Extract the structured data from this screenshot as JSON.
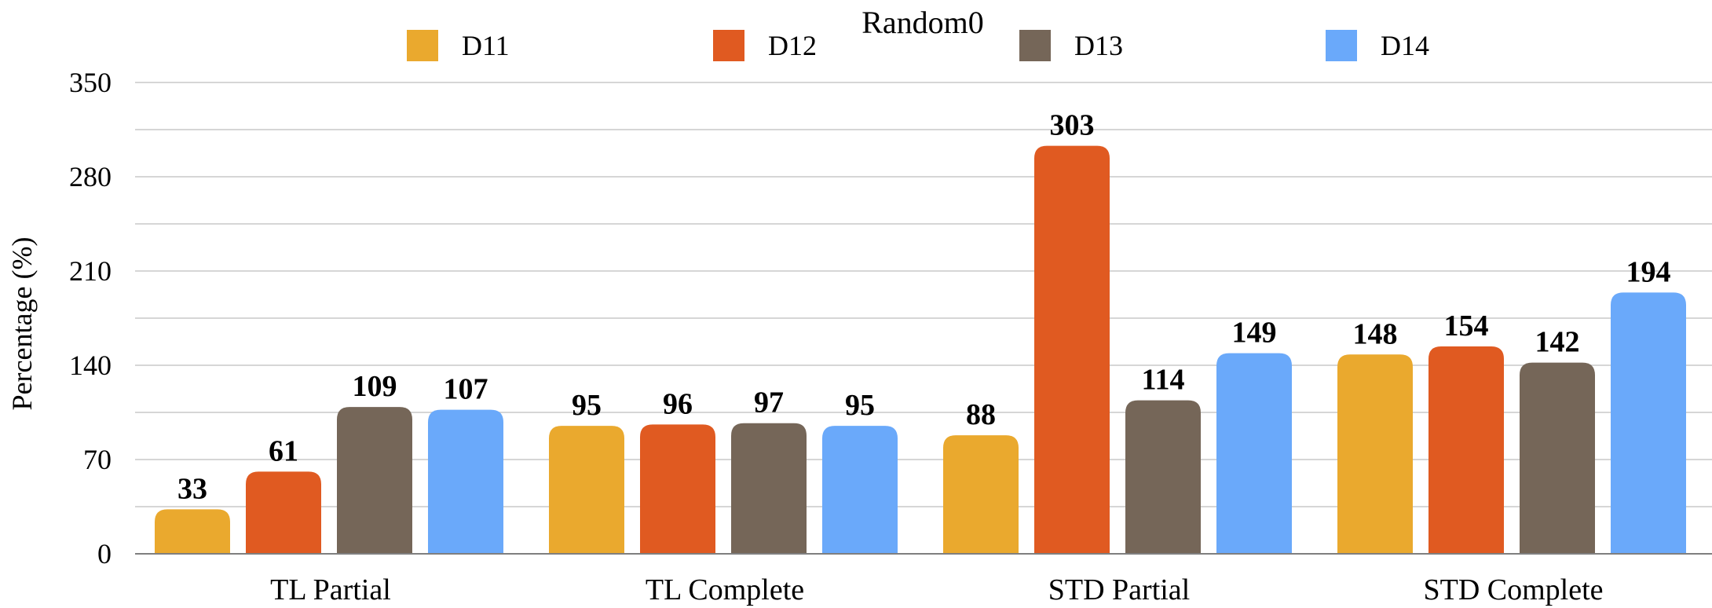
{
  "chart_data": {
    "type": "bar",
    "title": "Random0",
    "xlabel": "",
    "ylabel": "Percentage (%)",
    "categories": [
      "TL Partial",
      "TL Complete",
      "STD Partial",
      "STD Complete"
    ],
    "series": [
      {
        "name": "D11",
        "color": "#EAA92E",
        "values": [
          33,
          95,
          88,
          148
        ]
      },
      {
        "name": "D12",
        "color": "#E05A21",
        "values": [
          61,
          96,
          303,
          154
        ]
      },
      {
        "name": "D13",
        "color": "#756658",
        "values": [
          109,
          97,
          114,
          142
        ]
      },
      {
        "name": "D14",
        "color": "#6AA9FA",
        "values": [
          107,
          95,
          149,
          194
        ]
      }
    ],
    "ylim": [
      0,
      350
    ],
    "yticks": [
      0,
      70,
      140,
      210,
      280,
      350
    ],
    "grid": true,
    "legend_position": "top"
  }
}
